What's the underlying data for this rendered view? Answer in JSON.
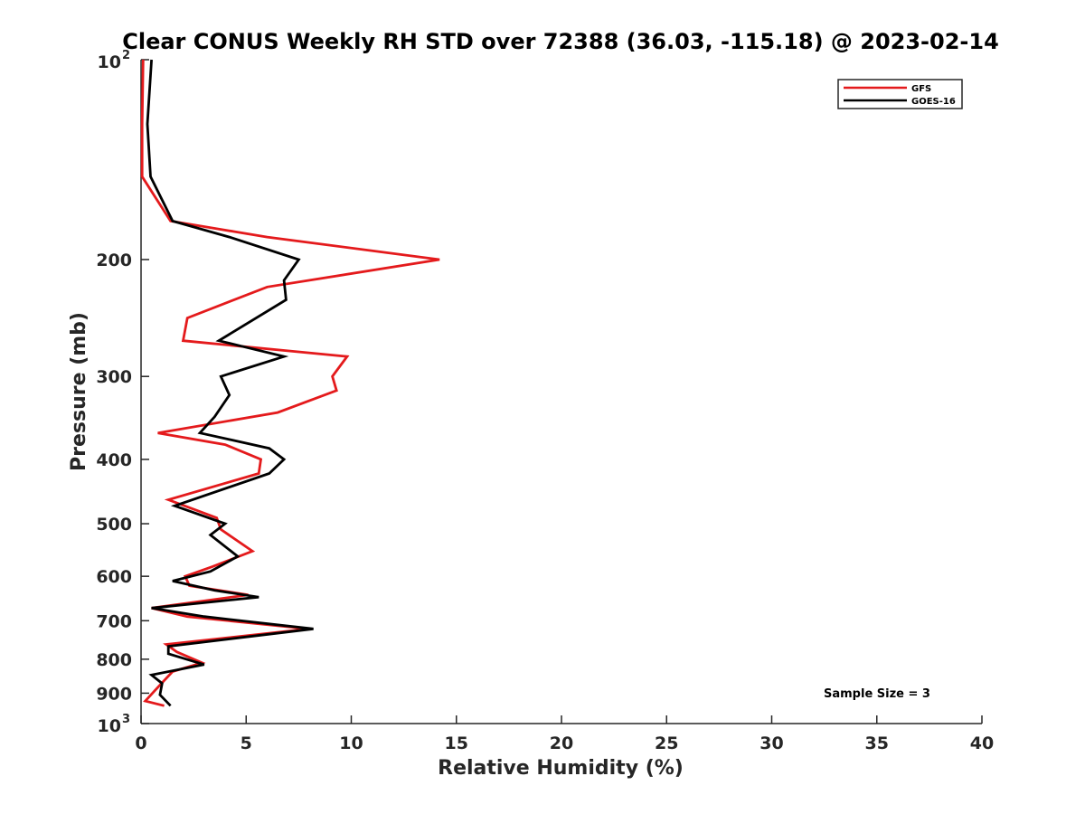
{
  "chart_data": {
    "type": "line",
    "title": "Clear CONUS Weekly RH STD over 72388 (36.03, -115.18) @ 2023-02-14",
    "xlabel": "Relative Humidity (%)",
    "ylabel": "Pressure (mb)",
    "xlim": [
      0,
      40
    ],
    "ylim": [
      100,
      1000
    ],
    "y_scale": "log",
    "y_reversed": true,
    "x_ticks": [
      "0",
      "5",
      "10",
      "15",
      "20",
      "25",
      "30",
      "35",
      "40"
    ],
    "y_ticks": [
      {
        "value": 100,
        "base": "10",
        "exp": "2"
      },
      {
        "value": 200,
        "label": "200"
      },
      {
        "value": 300,
        "label": "300"
      },
      {
        "value": 400,
        "label": "400"
      },
      {
        "value": 500,
        "label": "500"
      },
      {
        "value": 600,
        "label": "600"
      },
      {
        "value": 700,
        "label": "700"
      },
      {
        "value": 800,
        "label": "800"
      },
      {
        "value": 900,
        "label": "900"
      },
      {
        "value": 1000,
        "base": "10",
        "exp": "3"
      }
    ],
    "grid": false,
    "legend_position": "top-right",
    "annotation": "Sample Size = 3",
    "series": [
      {
        "name": "GFS",
        "color": "#e41a1c",
        "points": [
          [
            0.1,
            100
          ],
          [
            0.05,
            125
          ],
          [
            0.05,
            150
          ],
          [
            1.4,
            175
          ],
          [
            6.0,
            185
          ],
          [
            14.2,
            200
          ],
          [
            6.0,
            220
          ],
          [
            2.2,
            245
          ],
          [
            2.0,
            265
          ],
          [
            9.8,
            280
          ],
          [
            9.1,
            300
          ],
          [
            9.3,
            315
          ],
          [
            6.5,
            340
          ],
          [
            0.8,
            365
          ],
          [
            4.0,
            380
          ],
          [
            5.7,
            400
          ],
          [
            5.6,
            420
          ],
          [
            1.3,
            460
          ],
          [
            3.6,
            490
          ],
          [
            3.8,
            510
          ],
          [
            5.3,
            550
          ],
          [
            3.4,
            580
          ],
          [
            2.1,
            600
          ],
          [
            2.3,
            620
          ],
          [
            5.1,
            640
          ],
          [
            0.5,
            670
          ],
          [
            2.2,
            690
          ],
          [
            8.0,
            720
          ],
          [
            1.2,
            760
          ],
          [
            1.7,
            780
          ],
          [
            2.9,
            810
          ],
          [
            1.5,
            835
          ],
          [
            0.9,
            875
          ],
          [
            0.2,
            925
          ],
          [
            1.1,
            940
          ]
        ]
      },
      {
        "name": "GOES-16",
        "color": "#000000",
        "points": [
          [
            0.5,
            100
          ],
          [
            0.3,
            125
          ],
          [
            0.45,
            150
          ],
          [
            1.5,
            175
          ],
          [
            4.2,
            185
          ],
          [
            7.5,
            200
          ],
          [
            6.8,
            215
          ],
          [
            6.9,
            230
          ],
          [
            3.7,
            265
          ],
          [
            6.8,
            280
          ],
          [
            3.8,
            300
          ],
          [
            4.2,
            320
          ],
          [
            3.5,
            345
          ],
          [
            2.8,
            365
          ],
          [
            6.1,
            385
          ],
          [
            6.8,
            400
          ],
          [
            6.1,
            420
          ],
          [
            1.6,
            470
          ],
          [
            4.0,
            500
          ],
          [
            3.3,
            520
          ],
          [
            4.6,
            560
          ],
          [
            3.3,
            590
          ],
          [
            1.5,
            610
          ],
          [
            3.5,
            630
          ],
          [
            5.6,
            645
          ],
          [
            0.5,
            670
          ],
          [
            3.0,
            690
          ],
          [
            8.2,
            720
          ],
          [
            1.3,
            765
          ],
          [
            1.3,
            785
          ],
          [
            3.0,
            815
          ],
          [
            0.5,
            845
          ],
          [
            1.0,
            870
          ],
          [
            0.9,
            905
          ],
          [
            1.4,
            940
          ]
        ]
      }
    ]
  }
}
